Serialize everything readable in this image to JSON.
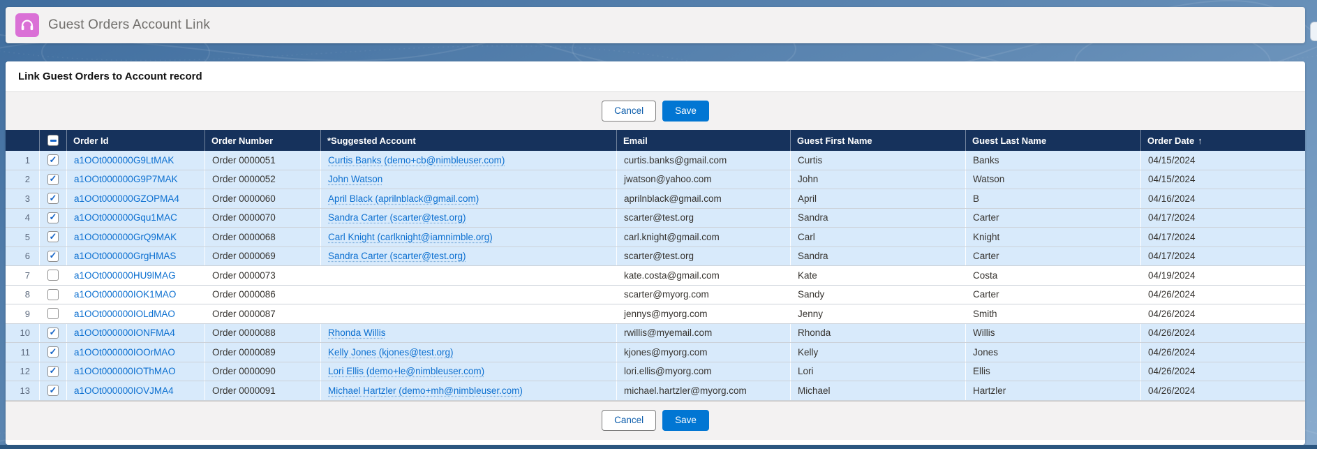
{
  "app": {
    "title": "Guest Orders Account Link",
    "icon": "headphones-icon"
  },
  "page": {
    "section_title": "Link Guest Orders to Account record"
  },
  "actions": {
    "cancel_label": "Cancel",
    "save_label": "Save"
  },
  "table": {
    "select_all_state": "indeterminate",
    "columns": [
      {
        "key": "rownum",
        "label": ""
      },
      {
        "key": "select",
        "label": ""
      },
      {
        "key": "order_id",
        "label": "Order Id"
      },
      {
        "key": "order_number",
        "label": "Order Number"
      },
      {
        "key": "suggested_account",
        "label": "*Suggested Account"
      },
      {
        "key": "email",
        "label": "Email"
      },
      {
        "key": "first_name",
        "label": "Guest First Name"
      },
      {
        "key": "last_name",
        "label": "Guest Last Name"
      },
      {
        "key": "order_date",
        "label": "Order Date",
        "sort_arrow": "↑"
      }
    ],
    "sort": {
      "column": "Order Date",
      "direction": "ascending",
      "arrow": "↑"
    },
    "rows": [
      {
        "num": "1",
        "checked": true,
        "order_id": "a1OOt000000G9LtMAK",
        "order_number": "Order 0000051",
        "suggested_account": "Curtis Banks (demo+cb@nimbleuser.com)",
        "email": "curtis.banks@gmail.com",
        "first_name": "Curtis",
        "last_name": "Banks",
        "order_date": "04/15/2024"
      },
      {
        "num": "2",
        "checked": true,
        "order_id": "a1OOt000000G9P7MAK",
        "order_number": "Order 0000052",
        "suggested_account": "John Watson",
        "email": "jwatson@yahoo.com",
        "first_name": "John",
        "last_name": "Watson",
        "order_date": "04/15/2024"
      },
      {
        "num": "3",
        "checked": true,
        "order_id": "a1OOt000000GZOPMA4",
        "order_number": "Order 0000060",
        "suggested_account": "April Black (aprilnblack@gmail.com)",
        "email": "aprilnblack@gmail.com",
        "first_name": "April",
        "last_name": "B",
        "order_date": "04/16/2024"
      },
      {
        "num": "4",
        "checked": true,
        "order_id": "a1OOt000000Gqu1MAC",
        "order_number": "Order 0000070",
        "suggested_account": "Sandra Carter (scarter@test.org)",
        "email": "scarter@test.org",
        "first_name": "Sandra",
        "last_name": "Carter",
        "order_date": "04/17/2024"
      },
      {
        "num": "5",
        "checked": true,
        "order_id": "a1OOt000000GrQ9MAK",
        "order_number": "Order 0000068",
        "suggested_account": "Carl Knight (carlknight@iamnimble.org)",
        "email": "carl.knight@gmail.com",
        "first_name": "Carl",
        "last_name": "Knight",
        "order_date": "04/17/2024"
      },
      {
        "num": "6",
        "checked": true,
        "order_id": "a1OOt000000GrgHMAS",
        "order_number": "Order 0000069",
        "suggested_account": "Sandra Carter (scarter@test.org)",
        "email": "scarter@test.org",
        "first_name": "Sandra",
        "last_name": "Carter",
        "order_date": "04/17/2024"
      },
      {
        "num": "7",
        "checked": false,
        "order_id": "a1OOt000000HU9lMAG",
        "order_number": "Order 0000073",
        "suggested_account": "",
        "email": "kate.costa@gmail.com",
        "first_name": "Kate",
        "last_name": "Costa",
        "order_date": "04/19/2024"
      },
      {
        "num": "8",
        "checked": false,
        "order_id": "a1OOt000000IOK1MAO",
        "order_number": "Order 0000086",
        "suggested_account": "",
        "email": "scarter@myorg.com",
        "first_name": "Sandy",
        "last_name": "Carter",
        "order_date": "04/26/2024"
      },
      {
        "num": "9",
        "checked": false,
        "order_id": "a1OOt000000IOLdMAO",
        "order_number": "Order 0000087",
        "suggested_account": "",
        "email": "jennys@myorg.com",
        "first_name": "Jenny",
        "last_name": "Smith",
        "order_date": "04/26/2024"
      },
      {
        "num": "10",
        "checked": true,
        "order_id": "a1OOt000000IONFMA4",
        "order_number": "Order 0000088",
        "suggested_account": "Rhonda Willis",
        "email": "rwillis@myemail.com",
        "first_name": "Rhonda",
        "last_name": "Willis",
        "order_date": "04/26/2024"
      },
      {
        "num": "11",
        "checked": true,
        "order_id": "a1OOt000000IOOrMAO",
        "order_number": "Order 0000089",
        "suggested_account": "Kelly Jones (kjones@test.org)",
        "email": "kjones@myorg.com",
        "first_name": "Kelly",
        "last_name": "Jones",
        "order_date": "04/26/2024"
      },
      {
        "num": "12",
        "checked": true,
        "order_id": "a1OOt000000IOThMAO",
        "order_number": "Order 0000090",
        "suggested_account": "Lori Ellis (demo+le@nimbleuser.com)",
        "email": "lori.ellis@myorg.com",
        "first_name": "Lori",
        "last_name": "Ellis",
        "order_date": "04/26/2024"
      },
      {
        "num": "13",
        "checked": true,
        "order_id": "a1OOt000000IOVJMA4",
        "order_number": "Order 0000091",
        "suggested_account": "Michael Hartzler (demo+mh@nimbleuser.com)",
        "email": "michael.hartzler@myorg.com",
        "first_name": "Michael",
        "last_name": "Hartzler",
        "order_date": "04/26/2024"
      }
    ]
  },
  "colors": {
    "app_icon_bg": "#da70d6",
    "header_bg": "#16325c",
    "selected_row_bg": "#d8eafb",
    "link": "#0b6fd0",
    "save_button_bg": "#0176d3"
  }
}
